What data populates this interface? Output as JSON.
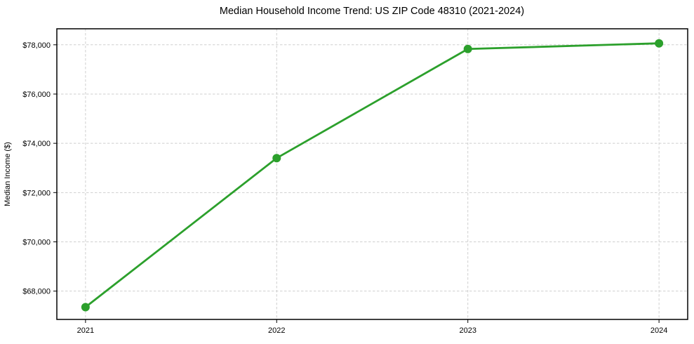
{
  "figure": {
    "background": "#ffffff"
  },
  "chart_data": {
    "type": "line",
    "title": "Median Household Income Trend: US ZIP Code 48310 (2021-2024)",
    "xlabel": "",
    "ylabel": "Median Income ($)",
    "x": [
      2021,
      2022,
      2023,
      2024
    ],
    "xtick_labels": [
      "2021",
      "2022",
      "2023",
      "2024"
    ],
    "series": [
      {
        "name": "Median household income",
        "values": [
          67350,
          73400,
          77830,
          78060
        ]
      }
    ],
    "ytick_values": [
      68000,
      70000,
      72000,
      74000,
      76000,
      78000
    ],
    "ytick_labels": [
      "$68,000",
      "$70,000",
      "$72,000",
      "$74,000",
      "$76,000",
      "$78,000"
    ],
    "xlim": [
      2020.85,
      2024.15
    ],
    "ylim": [
      66850,
      78650
    ],
    "grid": true,
    "grid_style": "dashed",
    "legend": "none",
    "colors": {
      "line": "#2ca02c",
      "marker": "#2ca02c",
      "grid": "#cfcfcf",
      "spine": "#000000",
      "text": "#000000",
      "background": "#ffffff"
    },
    "marker": "circle"
  }
}
